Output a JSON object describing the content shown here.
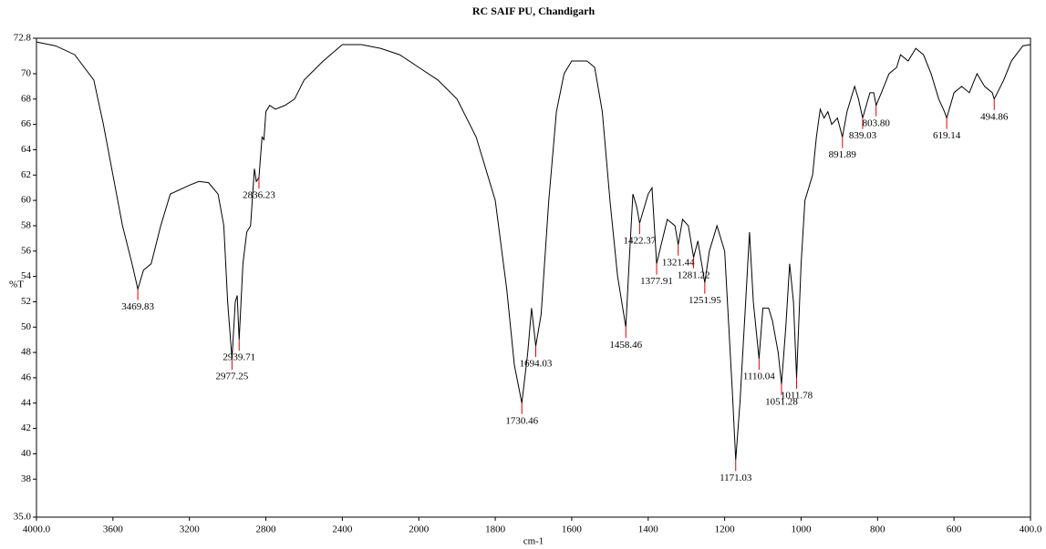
{
  "chart_data": {
    "type": "line",
    "title": "RC SAIF PU, Chandigarh",
    "xlabel": "cm-1",
    "ylabel": "%T",
    "color": "#000000",
    "peak_color": "#e00000",
    "grid": false,
    "xlim": [
      4000,
      400
    ],
    "ylim": [
      35,
      72.8
    ],
    "xticks": [
      {
        "value": 4000,
        "label": "4000.0"
      },
      3600,
      3200,
      2800,
      2400,
      2000,
      1800,
      1600,
      1400,
      1200,
      1000,
      800,
      600,
      {
        "value": 400,
        "label": "400.0"
      }
    ],
    "yticks": [
      {
        "value": 35,
        "label": "35.0"
      },
      38,
      40,
      42,
      44,
      46,
      48,
      50,
      52,
      54,
      56,
      58,
      60,
      62,
      64,
      66,
      68,
      70,
      72.8
    ],
    "x": [
      4000,
      3900,
      3800,
      3700,
      3650,
      3600,
      3550,
      3500,
      3469.83,
      3440,
      3400,
      3350,
      3300,
      3200,
      3150,
      3100,
      3050,
      3020,
      3000,
      2977.25,
      2960,
      2950,
      2939.71,
      2920,
      2900,
      2880,
      2860,
      2850,
      2836.23,
      2820,
      2810,
      2800,
      2780,
      2750,
      2700,
      2650,
      2600,
      2500,
      2400,
      2300,
      2200,
      2100,
      2000,
      1950,
      1900,
      1850,
      1800,
      1770,
      1750,
      1730.46,
      1715,
      1705,
      1694.03,
      1680,
      1660,
      1640,
      1620,
      1600,
      1560,
      1540,
      1520,
      1500,
      1480,
      1458.46,
      1450,
      1440,
      1430,
      1422.37,
      1400,
      1390,
      1377.91,
      1370,
      1350,
      1330,
      1321.44,
      1310,
      1295,
      1281.22,
      1270,
      1251.95,
      1240,
      1220,
      1200,
      1180,
      1171.03,
      1160,
      1145,
      1135,
      1125,
      1110.04,
      1100,
      1085,
      1075,
      1060,
      1051.28,
      1040,
      1030,
      1020,
      1011.78,
      1000,
      990,
      970,
      960,
      950,
      940,
      930,
      920,
      905,
      891.89,
      880,
      860,
      850,
      839.03,
      820,
      810,
      803.8,
      790,
      770,
      750,
      740,
      720,
      700,
      680,
      660,
      640,
      625,
      619.14,
      600,
      580,
      560,
      540,
      520,
      500,
      494.86,
      470,
      450,
      420,
      400
    ],
    "values": [
      72.5,
      72.2,
      71.5,
      69.5,
      66,
      62,
      58,
      55,
      53,
      54.5,
      55,
      58,
      60.5,
      61.2,
      61.5,
      61.4,
      60.5,
      58,
      52,
      47.5,
      52,
      52.5,
      49,
      55,
      57.5,
      58,
      62.5,
      61.5,
      61.8,
      65,
      64.8,
      67,
      67.5,
      67.2,
      67.5,
      68,
      69.5,
      71,
      72.3,
      72.3,
      72,
      71.5,
      70.5,
      69.5,
      68,
      65,
      60,
      53,
      47,
      44,
      48,
      51.5,
      48.5,
      51,
      60,
      67,
      70,
      71,
      71,
      70.5,
      67,
      60,
      54,
      50,
      55,
      60.5,
      59.5,
      58.2,
      60.5,
      61,
      55,
      56,
      58.5,
      58,
      56.5,
      58.5,
      58,
      55.5,
      56.8,
      53.5,
      56,
      58,
      56,
      45,
      39.5,
      44,
      52,
      57.5,
      52,
      47.5,
      51.5,
      51.5,
      50.5,
      48,
      45.5,
      50,
      55,
      52,
      46,
      55,
      60,
      62,
      65,
      67.2,
      66.5,
      67,
      66,
      66.5,
      65,
      67,
      69,
      68,
      66.5,
      68.5,
      68.5,
      67.5,
      68.5,
      70,
      70.5,
      71.5,
      71,
      72,
      71.5,
      70,
      68,
      67,
      66.5,
      68.5,
      69,
      68.5,
      70,
      69,
      68.5,
      68,
      69.5,
      71,
      72.2,
      72.3
    ],
    "peaks": [
      {
        "x": 3469.83,
        "y": 53,
        "label": "3469.83"
      },
      {
        "x": 2977.25,
        "y": 47.5,
        "label": "2977.25"
      },
      {
        "x": 2939.71,
        "y": 49,
        "label": "2939.71"
      },
      {
        "x": 2836.23,
        "y": 61.8,
        "label": "2836.23"
      },
      {
        "x": 1730.46,
        "y": 44,
        "label": "1730.46"
      },
      {
        "x": 1694.03,
        "y": 48.5,
        "label": "1694.03"
      },
      {
        "x": 1458.46,
        "y": 50,
        "label": "1458.46"
      },
      {
        "x": 1422.37,
        "y": 58.2,
        "label": "1422.37"
      },
      {
        "x": 1377.91,
        "y": 55,
        "label": "1377.91"
      },
      {
        "x": 1321.44,
        "y": 56.5,
        "label": "1321.44"
      },
      {
        "x": 1281.22,
        "y": 55.5,
        "label": "1281.22"
      },
      {
        "x": 1251.95,
        "y": 53.5,
        "label": "1251.95"
      },
      {
        "x": 1171.03,
        "y": 39.5,
        "label": "1171.03"
      },
      {
        "x": 1110.04,
        "y": 47.5,
        "label": "1110.04"
      },
      {
        "x": 1051.28,
        "y": 45.5,
        "label": "1051.28"
      },
      {
        "x": 1011.78,
        "y": 46,
        "label": "1011.78"
      },
      {
        "x": 891.89,
        "y": 65,
        "label": "891.89"
      },
      {
        "x": 839.03,
        "y": 66.5,
        "label": "839.03"
      },
      {
        "x": 803.8,
        "y": 67.5,
        "label": "803.80"
      },
      {
        "x": 619.14,
        "y": 66.5,
        "label": "619.14"
      },
      {
        "x": 494.86,
        "y": 68,
        "label": "494.86"
      }
    ]
  }
}
